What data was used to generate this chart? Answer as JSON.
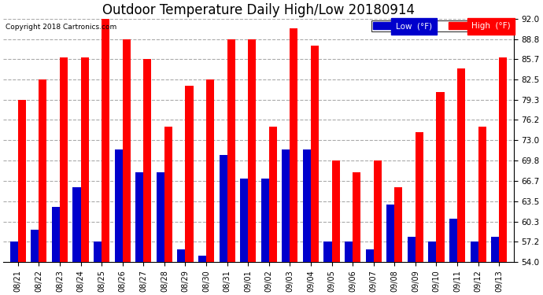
{
  "title": "Outdoor Temperature Daily High/Low 20180914",
  "copyright": "Copyright 2018 Cartronics.com",
  "legend_low": "Low  (°F)",
  "legend_high": "High  (°F)",
  "dates": [
    "08/21",
    "08/22",
    "08/23",
    "08/24",
    "08/25",
    "08/26",
    "08/27",
    "08/28",
    "08/29",
    "08/30",
    "08/31",
    "09/01",
    "09/02",
    "09/03",
    "09/04",
    "09/05",
    "09/06",
    "09/07",
    "09/08",
    "09/09",
    "09/10",
    "09/11",
    "09/12",
    "09/13"
  ],
  "highs": [
    79.3,
    82.5,
    86.0,
    86.0,
    92.0,
    88.8,
    85.7,
    75.2,
    81.5,
    82.5,
    88.8,
    88.8,
    75.2,
    90.5,
    87.8,
    69.8,
    68.0,
    69.8,
    65.7,
    74.3,
    80.6,
    84.2,
    75.2,
    86.0
  ],
  "lows": [
    57.2,
    59.0,
    62.6,
    65.7,
    57.2,
    71.6,
    68.0,
    68.0,
    56.0,
    55.0,
    70.7,
    67.0,
    67.0,
    71.6,
    71.6,
    57.2,
    57.2,
    56.0,
    63.0,
    58.0,
    57.2,
    60.8,
    57.2,
    58.0
  ],
  "ymin": 54.0,
  "ymax": 92.0,
  "yticks": [
    54.0,
    57.2,
    60.3,
    63.5,
    66.7,
    69.8,
    73.0,
    76.2,
    79.3,
    82.5,
    85.7,
    88.8,
    92.0
  ],
  "high_color": "#ff0000",
  "low_color": "#0000cc",
  "bg_color": "#ffffff",
  "grid_color": "#aaaaaa",
  "title_fontsize": 12,
  "bar_width": 0.38
}
